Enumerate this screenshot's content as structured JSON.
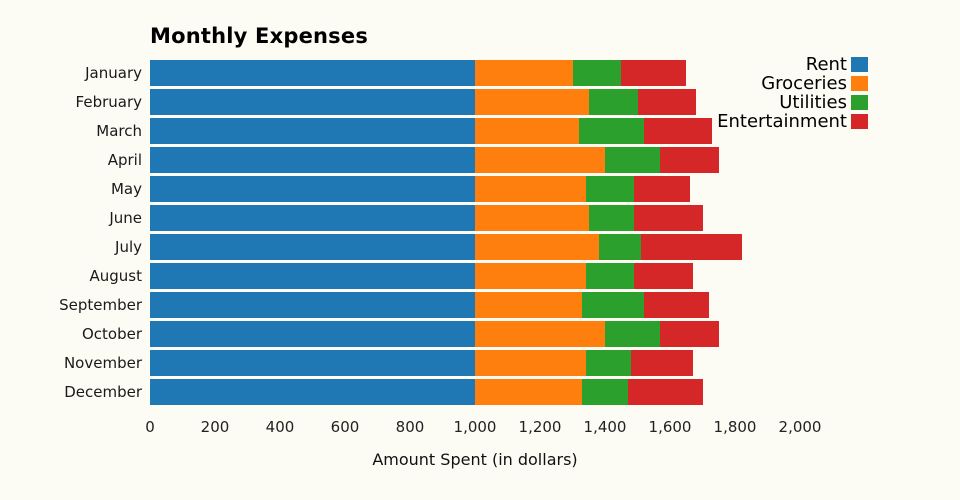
{
  "title": "Monthly Expenses",
  "xlabel": "Amount Spent (in dollars)",
  "colors": {
    "background": "#fcfcf5",
    "rent": "#1f77b4",
    "groceries": "#ff7f0e",
    "utilities": "#2ca02c",
    "entertainment": "#d62728"
  },
  "chart_data": {
    "type": "bar",
    "orientation": "horizontal",
    "stacked": true,
    "title": "Monthly Expenses",
    "xlabel": "Amount Spent (in dollars)",
    "ylabel": "",
    "grid": false,
    "legend_position": "top-right",
    "xlim": [
      0,
      2000
    ],
    "x_ticks": [
      0,
      200,
      400,
      600,
      800,
      1000,
      1200,
      1400,
      1600,
      1800,
      2000
    ],
    "x_tick_labels": [
      "0",
      "200",
      "400",
      "600",
      "800",
      "1,000",
      "1,200",
      "1,400",
      "1,600",
      "1,800",
      "2,000"
    ],
    "categories": [
      "January",
      "February",
      "March",
      "April",
      "May",
      "June",
      "July",
      "August",
      "September",
      "October",
      "November",
      "December"
    ],
    "series": [
      {
        "name": "Rent",
        "color": "#1f77b4",
        "values": [
          1000,
          1000,
          1000,
          1000,
          1000,
          1000,
          1000,
          1000,
          1000,
          1000,
          1000,
          1000
        ]
      },
      {
        "name": "Groceries",
        "color": "#ff7f0e",
        "values": [
          300,
          350,
          320,
          400,
          340,
          350,
          380,
          340,
          330,
          400,
          340,
          330
        ]
      },
      {
        "name": "Utilities",
        "color": "#2ca02c",
        "values": [
          150,
          150,
          200,
          170,
          150,
          140,
          130,
          150,
          190,
          170,
          140,
          140
        ]
      },
      {
        "name": "Entertainment",
        "color": "#d62728",
        "values": [
          200,
          180,
          210,
          180,
          170,
          210,
          310,
          180,
          200,
          180,
          190,
          230
        ]
      }
    ]
  }
}
